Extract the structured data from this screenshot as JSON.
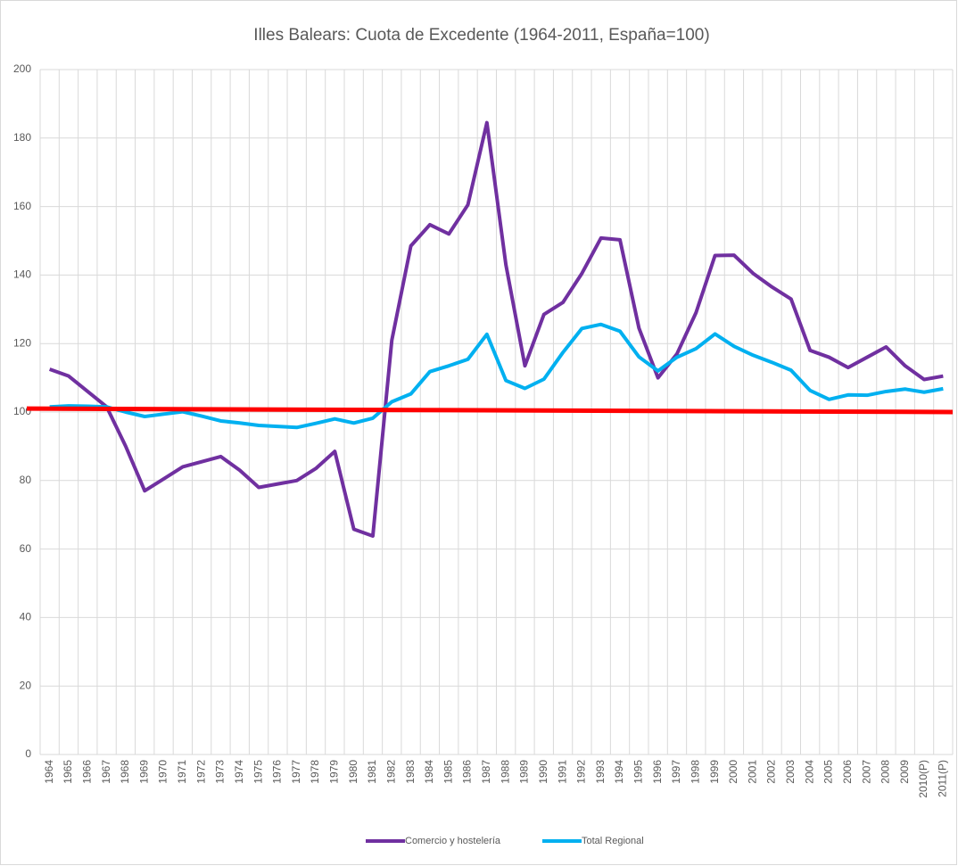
{
  "chart_data": {
    "type": "line",
    "title": "Illes Balears: Cuota de Excedente (1964-2011, España=100)",
    "categories": [
      "1964",
      "1965",
      "1966",
      "1967",
      "1968",
      "1969",
      "1970",
      "1971",
      "1972",
      "1973",
      "1974",
      "1975",
      "1976",
      "1977",
      "1978",
      "1979",
      "1980",
      "1981",
      "1982",
      "1983",
      "1984",
      "1985",
      "1986",
      "1987",
      "1988",
      "1989",
      "1990",
      "1991",
      "1992",
      "1993",
      "1994",
      "1995",
      "1996",
      "1997",
      "1998",
      "1999",
      "2000",
      "2001",
      "2002",
      "2003",
      "2004",
      "2005",
      "2006",
      "2007",
      "2008",
      "2009",
      "2010(P)",
      "2011(P)"
    ],
    "series": [
      {
        "name": "Comercio y hostelería",
        "color": "#7030a0",
        "values": [
          112.5,
          110.5,
          106,
          101.5,
          90,
          77,
          80.5,
          84,
          85.5,
          87,
          83,
          78,
          79,
          80,
          83.5,
          88.5,
          65.8,
          63.8,
          121,
          148.5,
          154.7,
          152,
          160.5,
          184.5,
          143,
          113.5,
          128.5,
          132,
          140.5,
          150.8,
          150.3,
          124.5,
          110,
          117,
          129,
          145.7,
          145.8,
          140.5,
          136.5,
          133,
          118,
          116,
          113,
          116,
          119,
          113.5,
          109.5,
          110.5
        ]
      },
      {
        "name": "Total Regional",
        "color": "#00b0f0",
        "values": [
          101.5,
          101.8,
          101.7,
          101.5,
          100,
          98.7,
          99.4,
          100.1,
          98.8,
          97.4,
          96.8,
          96.1,
          95.8,
          95.5,
          96.7,
          98,
          96.8,
          98.2,
          103,
          105.3,
          111.8,
          113.5,
          115.4,
          122.7,
          109.2,
          106.9,
          109.6,
          117.4,
          124.4,
          125.6,
          123.6,
          116.1,
          112,
          116,
          118.5,
          122.8,
          119.2,
          116.6,
          114.5,
          112.2,
          106.3,
          103.7,
          105,
          104.9,
          106,
          106.7,
          105.8,
          106.8
        ]
      }
    ],
    "reference_line": {
      "color": "#ff0000",
      "values": [
        101,
        100
      ]
    },
    "ylim": [
      0,
      200
    ],
    "yticks": [
      0,
      20,
      40,
      60,
      80,
      100,
      120,
      140,
      160,
      180,
      200
    ],
    "grid": true
  }
}
